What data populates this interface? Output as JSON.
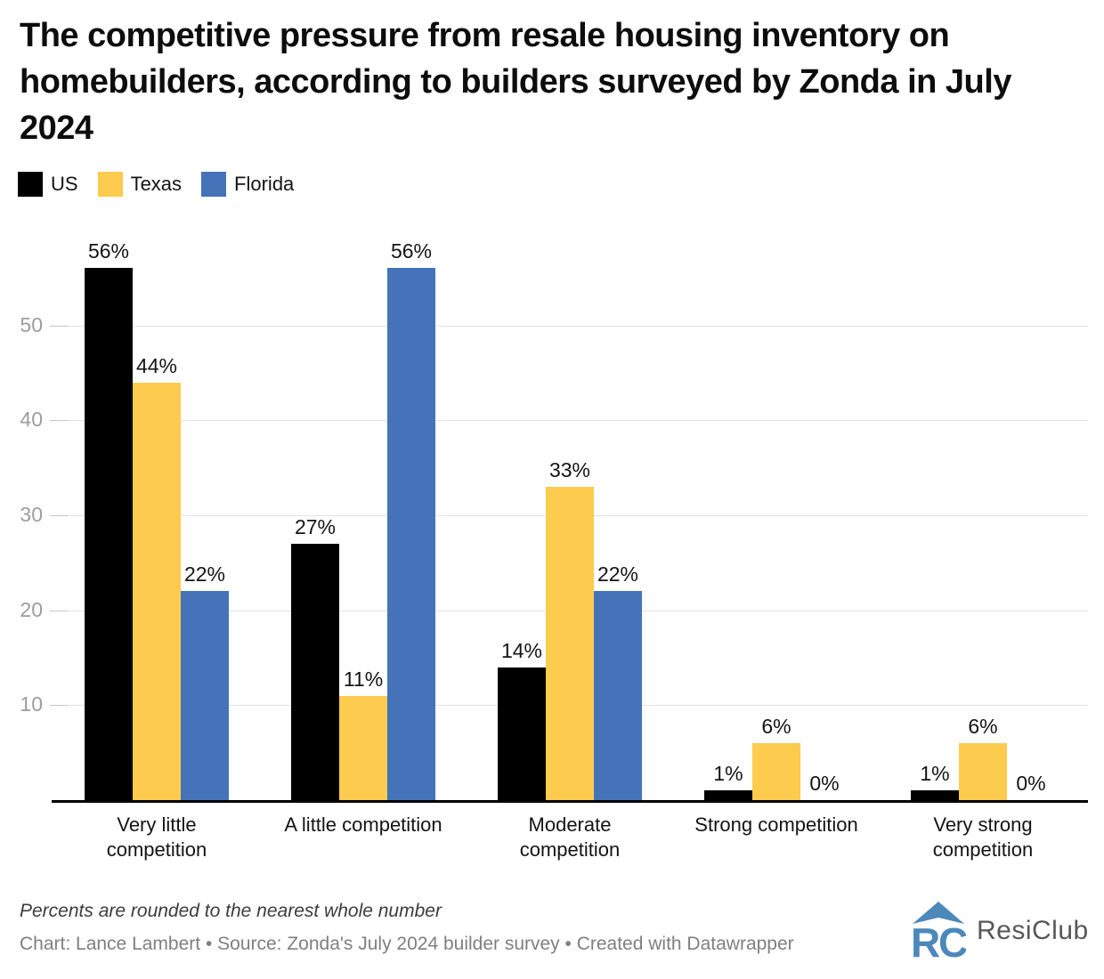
{
  "title": "The competitive pressure from resale housing inventory on homebuilders, according to builders surveyed by Zonda in July 2024",
  "chart_data": {
    "type": "bar",
    "title": "The competitive pressure from resale housing inventory on homebuilders, according to builders surveyed by Zonda in July 2024",
    "categories": [
      "Very little competition",
      "A little competition",
      "Moderate competition",
      "Strong competition",
      "Very strong competition"
    ],
    "category_display": [
      "Very little\ncompetition",
      "A little competition",
      "Moderate\ncompetition",
      "Strong competition",
      "Very strong\ncompetition"
    ],
    "series": [
      {
        "name": "US",
        "color": "#000000",
        "values": [
          56,
          27,
          14,
          1,
          1
        ]
      },
      {
        "name": "Texas",
        "color": "#FDCB4D",
        "values": [
          44,
          11,
          33,
          6,
          6
        ]
      },
      {
        "name": "Florida",
        "color": "#4473BA",
        "values": [
          22,
          56,
          22,
          0,
          0
        ]
      }
    ],
    "y_ticks": [
      10,
      20,
      30,
      40,
      50
    ],
    "ylim": [
      0,
      60
    ],
    "value_suffix": "%",
    "grid": true,
    "legend_position": "top-left",
    "xlabel": "",
    "ylabel": ""
  },
  "footer": {
    "note": "Percents are rounded to the nearest whole number",
    "byline": "Chart: Lance Lambert • Source: Zonda's July 2024 builder survey • Created with Datawrapper",
    "logo_text": "ResiClub"
  },
  "colors": {
    "grid": "#e2e2e2",
    "tick": "#c6c6c6",
    "tick_label": "#9d9d9d",
    "axis": "#000000",
    "text": "#141414",
    "logo_blue": "#4D88BB"
  }
}
